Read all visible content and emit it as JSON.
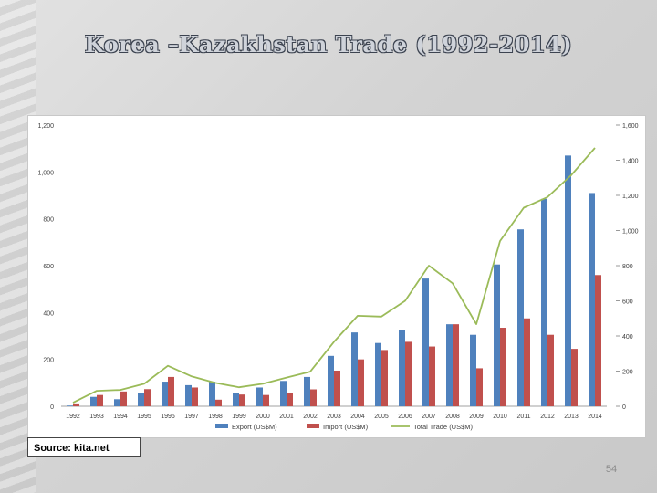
{
  "slide": {
    "title": "Korea –Kazakhstan Trade (1992-2014)",
    "source": "Source: kita.net",
    "page_number": "54"
  },
  "colors": {
    "export": "#4f81bd",
    "import": "#c0504d",
    "total": "#9bbb59",
    "axis_text": "#404040"
  },
  "chart_data": {
    "type": "bar",
    "categories": [
      "1992",
      "1993",
      "1994",
      "1995",
      "1996",
      "1997",
      "1998",
      "1999",
      "2000",
      "2001",
      "2002",
      "2003",
      "2004",
      "2005",
      "2006",
      "2007",
      "2008",
      "2009",
      "2010",
      "2011",
      "2012",
      "2013",
      "2014"
    ],
    "series": [
      {
        "name": "Export (US$M)",
        "type": "bar",
        "axis": "left",
        "values": [
          3,
          40,
          30,
          55,
          105,
          90,
          105,
          58,
          80,
          108,
          125,
          215,
          315,
          270,
          325,
          545,
          350,
          305,
          605,
          755,
          885,
          1070,
          910
        ]
      },
      {
        "name": "Import (US$M)",
        "type": "bar",
        "axis": "left",
        "values": [
          12,
          48,
          63,
          73,
          125,
          80,
          28,
          50,
          48,
          55,
          72,
          152,
          200,
          240,
          275,
          255,
          350,
          162,
          335,
          375,
          305,
          245,
          560
        ]
      },
      {
        "name": "Total Trade (US$M)",
        "type": "line",
        "axis": "right",
        "values": [
          20,
          88,
          93,
          128,
          230,
          170,
          133,
          108,
          128,
          163,
          197,
          367,
          515,
          510,
          600,
          800,
          700,
          467,
          940,
          1130,
          1190,
          1315,
          1470
        ]
      }
    ],
    "y_left": {
      "min": 0,
      "max": 1200,
      "ticks": [
        0,
        200,
        400,
        600,
        800,
        1000,
        1200
      ],
      "tick_labels": [
        "0",
        "200",
        "400",
        "600",
        "800",
        "1,000",
        "1,200"
      ]
    },
    "y_right": {
      "min": 0,
      "max": 1600,
      "ticks": [
        0,
        200,
        400,
        600,
        800,
        1000,
        1200,
        1400,
        1600
      ],
      "tick_labels": [
        "0",
        "200",
        "400",
        "600",
        "800",
        "1,000",
        "1,200",
        "1,400",
        "1,600"
      ]
    },
    "legend": {
      "position": "bottom",
      "entries": [
        "Export (US$M)",
        "Import (US$M)",
        "Total Trade (US$M)"
      ]
    },
    "grid": false
  }
}
